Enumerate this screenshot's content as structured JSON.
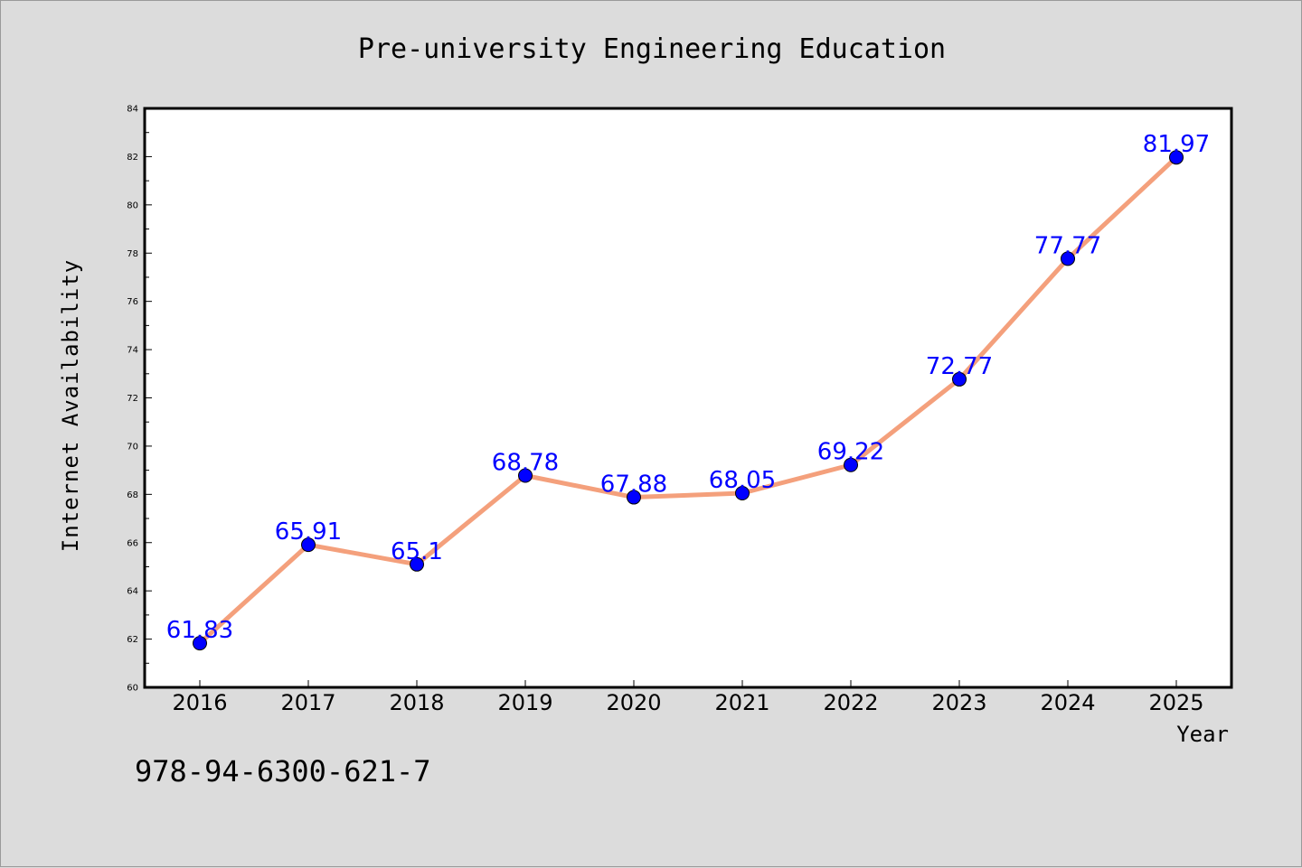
{
  "chart_data": {
    "type": "line",
    "title": "Pre-university Engineering Education",
    "xlabel": "Year",
    "ylabel": "Internet Availability",
    "categories": [
      "2016",
      "2017",
      "2018",
      "2019",
      "2020",
      "2021",
      "2022",
      "2023",
      "2024",
      "2025"
    ],
    "series": [
      {
        "values": [
          61.83,
          65.91,
          65.1,
          68.78,
          67.88,
          68.05,
          69.22,
          72.77,
          77.77,
          81.97
        ]
      }
    ],
    "data_labels": [
      "61.83",
      "65.91",
      "65.1",
      "68.78",
      "67.88",
      "68.05",
      "69.22",
      "72.77",
      "77.77",
      "81.97"
    ],
    "ylim": [
      60,
      84
    ],
    "yticks": [
      60,
      62,
      64,
      66,
      68,
      70,
      72,
      74,
      76,
      78,
      80,
      82,
      84
    ],
    "grid": false,
    "colors": {
      "line": "#f4a07c",
      "marker": "#0000ff",
      "label": "#0000ff",
      "background": "#dcdcdc",
      "plot_background": "#ffffff"
    }
  },
  "footnote": "978-94-6300-621-7"
}
